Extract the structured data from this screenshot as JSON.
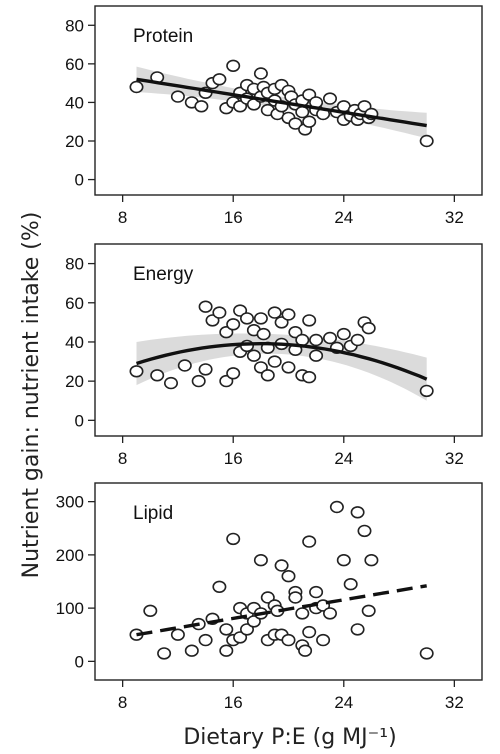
{
  "figure": {
    "ylabel": "Nutrient gain: nutrient intake (%)",
    "xlabel": "Dietary P:E (g MJ⁻¹)"
  },
  "chart_data": [
    {
      "type": "scatter",
      "title": "Protein",
      "xlim": [
        6,
        34
      ],
      "ylim": [
        -8,
        90
      ],
      "xticks": [
        8,
        16,
        24,
        32
      ],
      "yticks": [
        0,
        20,
        40,
        60,
        80
      ],
      "fit": {
        "style": "solid",
        "shape": "linear",
        "x": [
          9,
          30
        ],
        "y": [
          52,
          28
        ],
        "band": 3
      },
      "x": [
        9,
        10.5,
        12,
        13,
        13.7,
        14,
        14.5,
        15,
        15.5,
        16,
        16,
        16.5,
        16.5,
        17,
        17,
        17.5,
        17.5,
        18,
        18,
        18.2,
        18.5,
        18.5,
        19,
        19,
        19.2,
        19.5,
        19.5,
        20,
        20,
        20.2,
        20.5,
        20.5,
        21,
        21,
        21.2,
        21.5,
        21.5,
        22,
        22,
        22.5,
        23,
        23.5,
        24,
        24,
        24.5,
        24.8,
        25,
        25.2,
        25.5,
        25.8,
        26,
        30
      ],
      "y": [
        48,
        53,
        43,
        40,
        38,
        45,
        50,
        52,
        37,
        59,
        40,
        45,
        38,
        49,
        42,
        47,
        39,
        55,
        43,
        48,
        36,
        45,
        41,
        47,
        34,
        49,
        38,
        46,
        32,
        43,
        39,
        29,
        41,
        35,
        26,
        44,
        30,
        36,
        40,
        34,
        42,
        35,
        31,
        38,
        33,
        36,
        31,
        34,
        38,
        32,
        34,
        20
      ]
    },
    {
      "type": "scatter",
      "title": "Energy",
      "xlim": [
        6,
        34
      ],
      "ylim": [
        -8,
        90
      ],
      "xticks": [
        8,
        16,
        24,
        32
      ],
      "yticks": [
        0,
        20,
        40,
        60,
        80
      ],
      "fit": {
        "style": "solid",
        "shape": "quadratic",
        "x": [
          9,
          17,
          30
        ],
        "y": [
          29,
          39,
          21
        ],
        "band": 5
      },
      "x": [
        9,
        10.5,
        11.5,
        12.5,
        13.5,
        14,
        14,
        14.5,
        15,
        15.5,
        15.5,
        16,
        16,
        16.5,
        16.5,
        17,
        17,
        17.5,
        17.5,
        18,
        18,
        18.2,
        18.5,
        18.5,
        19,
        19,
        19.5,
        19.5,
        20,
        20,
        20.5,
        20.5,
        21,
        21,
        21.5,
        21.5,
        22,
        22,
        23,
        23.5,
        24,
        24.5,
        25,
        25.5,
        25.8,
        30
      ],
      "y": [
        25,
        23,
        19,
        28,
        20,
        26,
        58,
        51,
        55,
        20,
        45,
        24,
        49,
        35,
        56,
        38,
        52,
        33,
        46,
        27,
        52,
        44,
        37,
        23,
        55,
        30,
        50,
        39,
        54,
        27,
        36,
        45,
        41,
        23,
        51,
        22,
        41,
        33,
        42,
        37,
        44,
        38,
        41,
        50,
        47,
        15
      ]
    },
    {
      "type": "scatter",
      "title": "Lipid",
      "xlim": [
        6,
        34
      ],
      "ylim": [
        -35,
        335
      ],
      "xticks": [
        8,
        16,
        24,
        32
      ],
      "yticks": [
        0,
        100,
        200,
        300
      ],
      "fit": {
        "style": "dashed",
        "shape": "linear",
        "x": [
          9,
          30
        ],
        "y": [
          50,
          142
        ]
      },
      "x": [
        9,
        10,
        11,
        12,
        13,
        13.5,
        14,
        14.5,
        15,
        15.5,
        15.5,
        16,
        16,
        16.5,
        16.5,
        17,
        17,
        17.5,
        17.5,
        18,
        18,
        18.5,
        18.5,
        19,
        19,
        19.2,
        19.5,
        19.5,
        20,
        20,
        20.5,
        20.5,
        21,
        21,
        21.2,
        21.5,
        21.5,
        22,
        22,
        22.5,
        22.5,
        23,
        23.5,
        24,
        24.5,
        25,
        25,
        25.5,
        25.8,
        26,
        30
      ],
      "y": [
        50,
        95,
        15,
        50,
        20,
        70,
        40,
        80,
        140,
        60,
        20,
        230,
        40,
        100,
        45,
        90,
        60,
        100,
        75,
        190,
        90,
        120,
        40,
        105,
        50,
        95,
        180,
        50,
        160,
        40,
        130,
        120,
        30,
        90,
        20,
        225,
        55,
        100,
        130,
        40,
        105,
        90,
        290,
        190,
        145,
        60,
        280,
        245,
        95,
        190,
        15
      ]
    }
  ]
}
